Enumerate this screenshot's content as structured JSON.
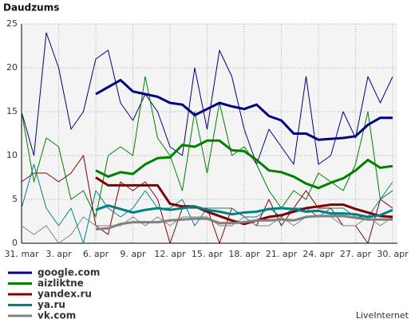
{
  "chart_data": {
    "type": "line",
    "title": "Daudzums",
    "brand": "LiveInternet",
    "categories": [
      "31. mar",
      null,
      null,
      "3. apr",
      null,
      null,
      "6. apr",
      null,
      null,
      "9. apr",
      null,
      null,
      "12. apr",
      null,
      null,
      "15. apr",
      null,
      null,
      "18. apr",
      null,
      null,
      "21. apr",
      null,
      null,
      "24. apr",
      null,
      null,
      "27. apr",
      null,
      null,
      "30. apr"
    ],
    "ylim": [
      0,
      25
    ],
    "yticks": [
      0,
      5,
      10,
      15,
      20,
      25
    ],
    "grid": true,
    "legend": "bottom-left",
    "series": [
      {
        "name": "google.com",
        "color": "#000080",
        "values": [
          15,
          10,
          24,
          20,
          13,
          15,
          21,
          22,
          16,
          14,
          17,
          15,
          11,
          10,
          20,
          13,
          22,
          19,
          13,
          9,
          13,
          11,
          9,
          19,
          9,
          10,
          15,
          12,
          19,
          16,
          19
        ],
        "average": [
          null,
          null,
          null,
          null,
          null,
          null,
          17,
          17.8,
          18.6,
          17.3,
          17,
          16.7,
          16,
          15.8,
          14.6,
          15.3,
          16,
          15.6,
          15.3,
          15.8,
          14.5,
          14,
          12.5,
          12.5,
          11.8,
          11.9,
          12,
          12.2,
          13.5,
          14.3,
          14.3
        ]
      },
      {
        "name": "aizliktne",
        "color": "#008000",
        "values": [
          15,
          7,
          12,
          11,
          5,
          6,
          3,
          10,
          11,
          10,
          19,
          12,
          10,
          6,
          15,
          8,
          16,
          10,
          11,
          9,
          6,
          4,
          6,
          5,
          8,
          7,
          6,
          9,
          15,
          5,
          6
        ],
        "average": [
          null,
          null,
          null,
          null,
          null,
          null,
          8.3,
          7.6,
          8.1,
          7.9,
          9,
          9.7,
          9.8,
          11.2,
          11,
          11.7,
          11.7,
          10.6,
          10.5,
          9.5,
          8.3,
          8.1,
          7.6,
          6.8,
          6.3,
          6.9,
          7.4,
          8.3,
          9.5,
          8.6,
          8.8
        ]
      },
      {
        "name": "yandex.ru",
        "color": "#800000",
        "values": [
          7,
          8,
          8,
          7,
          8,
          10,
          2,
          1,
          7,
          6,
          7,
          5,
          0,
          4,
          4,
          4,
          0,
          4,
          3,
          2,
          5,
          2,
          4,
          6,
          4,
          4,
          2,
          2,
          0,
          5,
          4
        ],
        "average": [
          null,
          null,
          null,
          null,
          null,
          null,
          7.5,
          6.6,
          6.6,
          6.6,
          6.6,
          6.6,
          4.5,
          4.2,
          4.2,
          3.6,
          3.1,
          2.6,
          2.2,
          2.6,
          3,
          3.2,
          3.6,
          4,
          4.2,
          4.4,
          4.4,
          3.9,
          3.5,
          3.1,
          3
        ]
      },
      {
        "name": "ya.ru",
        "color": "#008080",
        "values": [
          4,
          9,
          4,
          2,
          4,
          0,
          6,
          4,
          3,
          4,
          6,
          4,
          4,
          5,
          2,
          4,
          4,
          4,
          3,
          3,
          4,
          3,
          4,
          4,
          3,
          4,
          4,
          3,
          3,
          5,
          7
        ],
        "average": [
          null,
          null,
          null,
          null,
          null,
          null,
          3.8,
          4.3,
          3.9,
          3.5,
          3.8,
          4,
          3.8,
          4,
          4.2,
          3.8,
          3.6,
          3.3,
          3.5,
          3.6,
          3.9,
          4,
          3.9,
          3.6,
          3.7,
          3.4,
          3.4,
          3.3,
          3,
          3.2,
          3.8
        ]
      },
      {
        "name": "vk.com",
        "color": "#808080",
        "values": [
          2,
          1,
          2,
          0,
          1,
          3,
          2,
          2,
          2,
          3,
          2,
          3,
          2,
          3,
          3,
          3,
          2,
          2,
          3,
          2,
          2,
          3,
          2,
          3,
          3,
          3,
          2,
          2,
          3,
          2,
          3
        ],
        "average": [
          null,
          null,
          null,
          null,
          null,
          null,
          1.6,
          1.7,
          2.2,
          2.4,
          2.4,
          2.4,
          2.6,
          2.7,
          2.8,
          2.8,
          2.3,
          2.3,
          2.4,
          2.6,
          2.6,
          2.7,
          2.6,
          3,
          3.1,
          3.1,
          3.1,
          2.9,
          2.7,
          2.7,
          2.7
        ]
      }
    ]
  }
}
